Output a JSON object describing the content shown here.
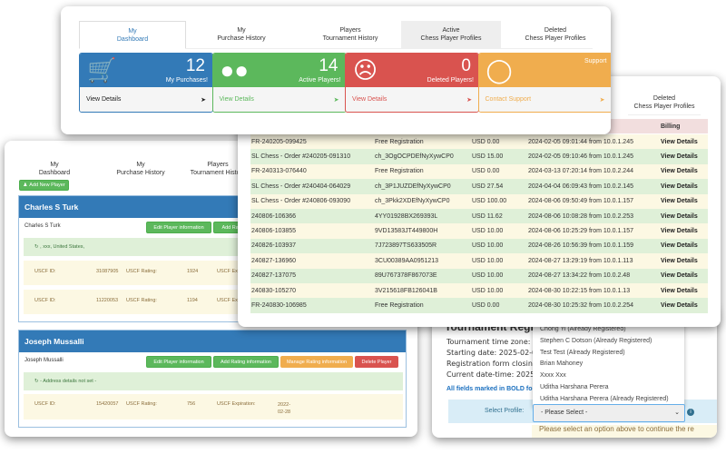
{
  "players_page": {
    "tabs": [
      {
        "l1": "My",
        "l2": "Dashboard"
      },
      {
        "l1": "My",
        "l2": "Purchase History"
      },
      {
        "l1": "Players",
        "l2": "Tournament History"
      }
    ],
    "add_player": "Add New Player",
    "players": [
      {
        "name": "Charles S Turk",
        "sub": "Charles S Turk",
        "address": ", xxx, United States,",
        "ratings": [
          {
            "id_label": "USCF ID:",
            "id": "31087905",
            "rating_label": "USCF Rating:",
            "rating": "1924",
            "exp_label": "USCF Exp"
          },
          {
            "id_label": "USCF ID:",
            "id": "11220053",
            "rating_label": "USCF Rating:",
            "rating": "1194",
            "exp_label": "USCF Exp"
          }
        ],
        "buttons": [
          "Edit Player information",
          "Add Rati"
        ]
      },
      {
        "name": "Joseph Mussalli",
        "sub": "Joseph Mussalli",
        "address": "- Address details not set -",
        "ratings": [
          {
            "id_label": "USCF ID:",
            "id": "15420057",
            "rating_label": "USCF Rating:",
            "rating": "756",
            "exp_label": "USCF Expiration:",
            "exp": "2022-02-28"
          }
        ],
        "buttons": [
          "Edit Player information",
          "Add Rating information",
          "Manage Rating information",
          "Delete Player"
        ]
      }
    ]
  },
  "billing_page": {
    "tab": {
      "l1": "Deleted",
      "l2": "Chess Player Profiles"
    },
    "billing_header": "Billing",
    "rows": [
      [
        "FR-240205-099425",
        "Free Registration",
        "USD 0.00",
        "2024-02-05 09:01:44 from 10.0.1.245",
        "View Details"
      ],
      [
        "SL Chess - Order #240205-091310",
        "ch_3OgOCPDEfNyXywCP0",
        "USD 15.00",
        "2024-02-05 09:10:46 from 10.0.1.245",
        "View Details"
      ],
      [
        "FR-240313-076440",
        "Free Registration",
        "USD 0.00",
        "2024-03-13 07:20:14 from 10.0.2.244",
        "View Details"
      ],
      [
        "SL Chess - Order #240404-064029",
        "ch_3P1JUZDEfNyXywCP0",
        "USD 27.54",
        "2024-04-04 06:09:43 from 10.0.2.145",
        "View Details"
      ],
      [
        "SL Chess - Order #240806-093090",
        "ch_3Pkk2XDEfNyXywCP0",
        "USD 100.00",
        "2024-08-06 09:50:49 from 10.0.1.157",
        "View Details"
      ],
      [
        "240806-106366",
        "4YY01928BX269393L",
        "USD 11.62",
        "2024-08-06 10:08:28 from 10.0.2.253",
        "View Details"
      ],
      [
        "240806-103855",
        "9VD13583JT449800H",
        "USD 10.00",
        "2024-08-06 10:25:29 from 10.0.1.157",
        "View Details"
      ],
      [
        "240826-103937",
        "7J723897TS633505R",
        "USD 10.00",
        "2024-08-26 10:56:39 from 10.0.1.159",
        "View Details"
      ],
      [
        "240827-136960",
        "3CU00389AA0951213",
        "USD 10.00",
        "2024-08-27 13:29:19 from 10.0.1.113",
        "View Details"
      ],
      [
        "240827-137075",
        "89U767378F867073E",
        "USD 10.00",
        "2024-08-27 13:34:22 from 10.0.2.48",
        "View Details"
      ],
      [
        "240830-105270",
        "3V215618FB126041B",
        "USD 10.00",
        "2024-08-30 10:22:15 from 10.0.1.13",
        "View Details"
      ],
      [
        "FR-240830-106985",
        "Free Registration",
        "USD 0.00",
        "2024-08-30 10:25:32 from 10.0.2.254",
        "View Details"
      ]
    ]
  },
  "registration_page": {
    "heading": "Tournament Regi",
    "lines": [
      "Tournament time zone: (GI",
      "Starting date: 2025-02-05",
      "Registration form closing d",
      "Current date-time: 2025-0"
    ],
    "bold_note": "All fields marked in BOLD fo",
    "select_label": "Select Profile:",
    "select_value": "- Please Select -",
    "options": [
      "Chong Yi (Already Registered)",
      "Stephen C Dotson (Already Registered)",
      "Test Test (Already Registered)",
      "Brian Mahoney",
      "Xxxx Xxx",
      "Uditha Harshana Perera",
      "Uditha Harshana Perera (Already Registered)"
    ],
    "warning": "Please select an option above to continue the re"
  },
  "dashboard": {
    "tabs": [
      {
        "l1": "My",
        "l2": "Dashboard"
      },
      {
        "l1": "My",
        "l2": "Purchase History"
      },
      {
        "l1": "Players",
        "l2": "Tournament History"
      },
      {
        "l1": "Active",
        "l2": "Chess Player Profiles"
      },
      {
        "l1": "Deleted",
        "l2": "Chess Player Profiles"
      }
    ],
    "stats": [
      {
        "value": "12",
        "caption": "My Purchases!",
        "link": "View Details",
        "icon": "cart-icon",
        "color": "#337ab7"
      },
      {
        "value": "14",
        "caption": "Active Players!",
        "link": "View Details",
        "icon": "users-icon",
        "color": "#5cb85c"
      },
      {
        "value": "0",
        "caption": "Deleted Players!",
        "link": "View Details",
        "icon": "frown-icon",
        "color": "#d9534f"
      },
      {
        "value": "",
        "caption": "Support",
        "link": "Contact Support",
        "icon": "life-ring-icon",
        "color": "#f0ad4e"
      }
    ]
  }
}
